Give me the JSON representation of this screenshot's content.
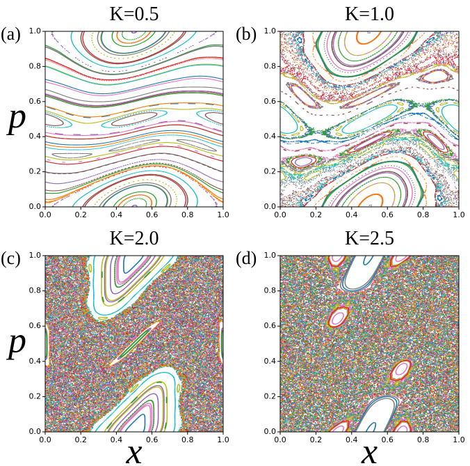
{
  "chart_data": [
    {
      "type": "scatter",
      "title": "K=0.5",
      "panel_label": "(a)",
      "ylabel": "p",
      "xlim": [
        0,
        1
      ],
      "ylim": [
        0,
        1
      ],
      "xticks": [
        {
          "value": 0,
          "label": "0.0"
        },
        0.2,
        0.4,
        0.6,
        0.8,
        {
          "value": 1,
          "label": "1.0"
        }
      ],
      "yticks": [
        {
          "value": 0,
          "label": "0.0"
        },
        0.2,
        0.4,
        0.6,
        0.8,
        {
          "value": 1,
          "label": "1.0"
        }
      ]
    },
    {
      "type": "scatter",
      "title": "K=1.0",
      "panel_label": "(b)",
      "xlim": [
        0,
        1
      ],
      "ylim": [
        0,
        1
      ],
      "xticks": [
        {
          "value": 0,
          "label": "0.0"
        },
        0.2,
        0.4,
        0.6,
        0.8,
        {
          "value": 1,
          "label": "1.0"
        }
      ],
      "yticks": [
        {
          "value": 0,
          "label": "0.0"
        },
        0.2,
        0.4,
        0.6,
        0.8,
        {
          "value": 1,
          "label": "1.0"
        }
      ]
    },
    {
      "type": "scatter",
      "title": "K=2.0",
      "panel_label": "(c)",
      "ylabel": "p",
      "xlabel": "x",
      "xlim": [
        0,
        1
      ],
      "ylim": [
        0,
        1
      ],
      "xticks": [
        {
          "value": 0,
          "label": "0.0"
        },
        0.2,
        0.4,
        0.6,
        0.8,
        {
          "value": 1,
          "label": "1.0"
        }
      ],
      "yticks": [
        {
          "value": 0,
          "label": "0.0"
        },
        0.2,
        0.4,
        0.6,
        0.8,
        {
          "value": 1,
          "label": "1.0"
        }
      ]
    },
    {
      "type": "scatter",
      "title": "K=2.5",
      "panel_label": "(d)",
      "xlabel": "x",
      "xlim": [
        0,
        1
      ],
      "ylim": [
        0,
        1
      ],
      "xticks": [
        {
          "value": 0,
          "label": "0.0"
        },
        0.2,
        0.4,
        0.6,
        0.8,
        {
          "value": 1,
          "label": "1.0"
        }
      ],
      "yticks": [
        {
          "value": 0,
          "label": "0.0"
        },
        0.2,
        0.4,
        0.6,
        0.8,
        {
          "value": 1,
          "label": "1.0"
        }
      ]
    }
  ]
}
